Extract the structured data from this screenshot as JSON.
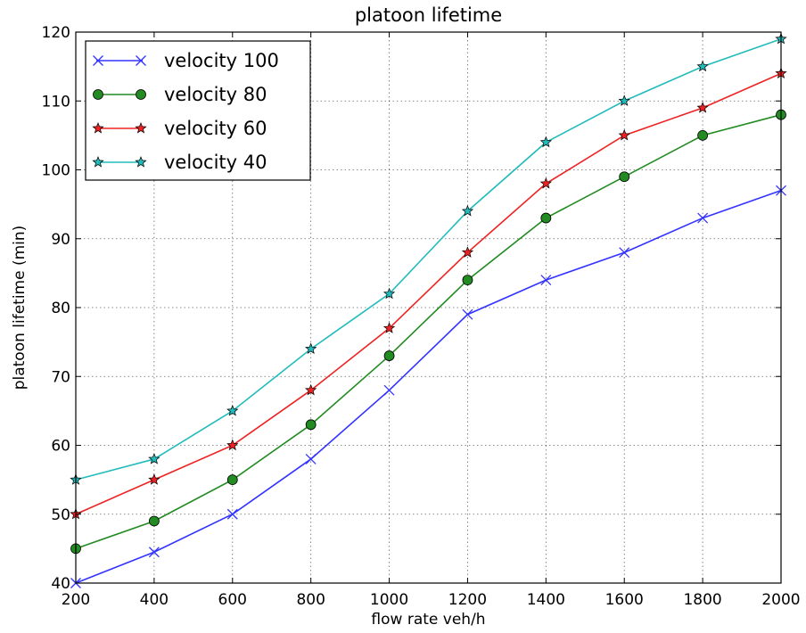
{
  "chart_data": {
    "type": "line",
    "title": "platoon lifetime",
    "xlabel": "flow rate veh/h",
    "ylabel": "platoon lifetime (min)",
    "x": [
      200,
      400,
      600,
      800,
      1000,
      1200,
      1400,
      1600,
      1800,
      2000
    ],
    "xlim": [
      200,
      2000
    ],
    "ylim": [
      40,
      120
    ],
    "xticks": [
      200,
      400,
      600,
      800,
      1000,
      1200,
      1400,
      1600,
      1800,
      2000
    ],
    "yticks": [
      40,
      50,
      60,
      70,
      80,
      90,
      100,
      110,
      120
    ],
    "grid": true,
    "legend_position": "top-left",
    "series": [
      {
        "name": "velocity 100",
        "color": "#3333ff",
        "marker": "x",
        "values": [
          40,
          44.5,
          50,
          58,
          68,
          79,
          84,
          88,
          93,
          97
        ]
      },
      {
        "name": "velocity 80",
        "color": "#228b22",
        "marker": "circle",
        "values": [
          45,
          49,
          55,
          63,
          73,
          84,
          93,
          99,
          105,
          108
        ]
      },
      {
        "name": "velocity 60",
        "color": "#ee2222",
        "marker": "star",
        "values": [
          50,
          55,
          60,
          68,
          77,
          88,
          98,
          105,
          109,
          114
        ]
      },
      {
        "name": "velocity 40",
        "color": "#22bbbb",
        "marker": "star",
        "values": [
          55,
          58,
          65,
          74,
          82,
          94,
          104,
          110,
          115,
          119
        ]
      }
    ]
  }
}
